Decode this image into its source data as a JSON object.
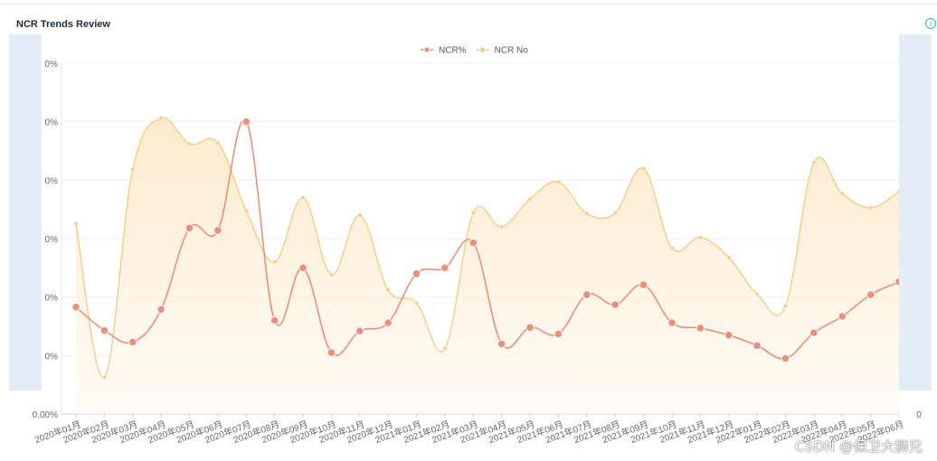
{
  "panel": {
    "title": "NCR Trends Review",
    "info_icon": "info-icon"
  },
  "watermark": "CSDN @保卫大狮兄",
  "colors": {
    "ncr_pct": "#e8907a",
    "ncr_no": "#f5cc85",
    "area_fill": "#fbe9c9",
    "side_panel": "#e3ecf7"
  },
  "chart_data": {
    "type": "line",
    "categories": [
      "2020年01月",
      "2020年02月",
      "2020年03月",
      "2020年04月",
      "2020年05月",
      "2020年06月",
      "2020年07月",
      "2020年08月",
      "2020年09月",
      "2020年10月",
      "2020年11月",
      "2020年12月",
      "2021年01月",
      "2021年02月",
      "2021年03月",
      "2021年04月",
      "2021年05月",
      "2021年06月",
      "2021年07月",
      "2021年08月",
      "2021年09月",
      "2021年10月",
      "2021年11月",
      "2021年12月",
      "2022年01月",
      "2022年02月",
      "2022年03月",
      "2022年04月",
      "2022年05月",
      "2022年06月"
    ],
    "left_axis": {
      "tick_labels": [
        "0.00%",
        "0%",
        "0%",
        "0%",
        "0%",
        "0%",
        "0%"
      ],
      "range": [
        0,
        6
      ]
    },
    "right_axis": {
      "tick_labels": [
        "0"
      ],
      "range": [
        0,
        6
      ]
    },
    "legend": [
      "NCR%",
      "NCR No"
    ],
    "legend_position": "top-center",
    "grid": true,
    "series": [
      {
        "name": "NCR%",
        "axis": "left",
        "smooth": true,
        "values": [
          1.83,
          1.43,
          1.23,
          1.79,
          3.18,
          3.14,
          5.0,
          1.6,
          2.5,
          1.05,
          1.42,
          1.56,
          2.4,
          2.5,
          2.93,
          1.2,
          1.48,
          1.37,
          2.04,
          1.87,
          2.21,
          1.56,
          1.47,
          1.35,
          1.17,
          0.95,
          1.39,
          1.67,
          2.04,
          2.26
        ]
      },
      {
        "name": "NCR No",
        "axis": "right",
        "smooth": true,
        "area": true,
        "values": [
          3.26,
          0.63,
          4.19,
          5.06,
          4.62,
          4.64,
          3.48,
          2.6,
          3.7,
          2.38,
          3.4,
          2.12,
          1.9,
          1.12,
          3.44,
          3.2,
          3.68,
          3.97,
          3.43,
          3.44,
          4.2,
          2.84,
          3.02,
          2.68,
          2.05,
          1.85,
          4.3,
          3.77,
          3.53,
          3.8
        ]
      }
    ]
  }
}
